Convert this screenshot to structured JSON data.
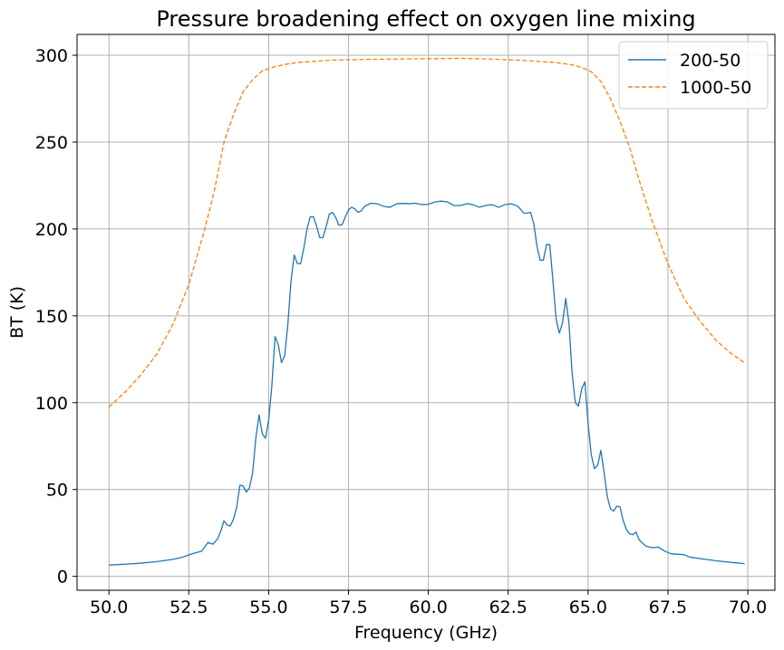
{
  "chart_data": {
    "type": "line",
    "title": "Pressure broadening effect on oxygen line mixing",
    "xlabel": "Frequency (GHz)",
    "ylabel": "BT (K)",
    "xlim": [
      49.0,
      70.85
    ],
    "ylim": [
      -8,
      312
    ],
    "xticks": [
      50.0,
      52.5,
      55.0,
      57.5,
      60.0,
      62.5,
      65.0,
      67.5,
      70.0
    ],
    "xtick_labels": [
      "50.0",
      "52.5",
      "55.0",
      "57.5",
      "60.0",
      "62.5",
      "65.0",
      "67.5",
      "70.0"
    ],
    "yticks": [
      0,
      50,
      100,
      150,
      200,
      250,
      300
    ],
    "ytick_labels": [
      "0",
      "50",
      "100",
      "150",
      "200",
      "250",
      "300"
    ],
    "grid": true,
    "legend_position": "top-right",
    "series": [
      {
        "name": "200-50",
        "color": "#1f77b4",
        "style": "solid",
        "points": [
          [
            50.0,
            6.5
          ],
          [
            50.5,
            7.0
          ],
          [
            51.0,
            7.6
          ],
          [
            51.5,
            8.5
          ],
          [
            52.0,
            9.8
          ],
          [
            52.3,
            11.0
          ],
          [
            52.6,
            13.0
          ],
          [
            52.9,
            14.5
          ],
          [
            53.0,
            17.0
          ],
          [
            53.1,
            19.5
          ],
          [
            53.25,
            18.5
          ],
          [
            53.4,
            21.5
          ],
          [
            53.5,
            26.0
          ],
          [
            53.6,
            32.0
          ],
          [
            53.7,
            29.5
          ],
          [
            53.8,
            29.0
          ],
          [
            53.9,
            33.0
          ],
          [
            54.0,
            40.0
          ],
          [
            54.1,
            52.5
          ],
          [
            54.2,
            52.0
          ],
          [
            54.3,
            48.5
          ],
          [
            54.4,
            51.0
          ],
          [
            54.5,
            60.0
          ],
          [
            54.6,
            80.0
          ],
          [
            54.7,
            93.0
          ],
          [
            54.8,
            82.0
          ],
          [
            54.9,
            79.5
          ],
          [
            55.0,
            90.0
          ],
          [
            55.1,
            110.0
          ],
          [
            55.2,
            138.0
          ],
          [
            55.3,
            133.5
          ],
          [
            55.4,
            123.0
          ],
          [
            55.5,
            127.0
          ],
          [
            55.6,
            145.0
          ],
          [
            55.7,
            170.0
          ],
          [
            55.8,
            185.0
          ],
          [
            55.9,
            180.0
          ],
          [
            56.0,
            180.0
          ],
          [
            56.1,
            189.0
          ],
          [
            56.2,
            200.0
          ],
          [
            56.3,
            207.0
          ],
          [
            56.4,
            207.0
          ],
          [
            56.5,
            201.5
          ],
          [
            56.6,
            195.0
          ],
          [
            56.7,
            195.0
          ],
          [
            56.8,
            201.5
          ],
          [
            56.9,
            208.5
          ],
          [
            57.0,
            209.5
          ],
          [
            57.1,
            206.5
          ],
          [
            57.2,
            202.0
          ],
          [
            57.3,
            202.5
          ],
          [
            57.4,
            207.0
          ],
          [
            57.5,
            211.0
          ],
          [
            57.6,
            212.5
          ],
          [
            57.7,
            211.5
          ],
          [
            57.8,
            209.5
          ],
          [
            57.9,
            210.5
          ],
          [
            58.0,
            213.0
          ],
          [
            58.2,
            214.8
          ],
          [
            58.4,
            214.5
          ],
          [
            58.6,
            213.0
          ],
          [
            58.8,
            212.5
          ],
          [
            59.0,
            214.5
          ],
          [
            59.2,
            214.7
          ],
          [
            59.4,
            214.5
          ],
          [
            59.6,
            214.8
          ],
          [
            59.8,
            214.0
          ],
          [
            60.0,
            214.2
          ],
          [
            60.2,
            215.5
          ],
          [
            60.4,
            216.0
          ],
          [
            60.6,
            215.5
          ],
          [
            60.8,
            213.5
          ],
          [
            61.0,
            213.5
          ],
          [
            61.2,
            214.5
          ],
          [
            61.4,
            214.0
          ],
          [
            61.6,
            212.5
          ],
          [
            61.8,
            213.5
          ],
          [
            62.0,
            214.0
          ],
          [
            62.2,
            212.5
          ],
          [
            62.4,
            214.0
          ],
          [
            62.6,
            214.5
          ],
          [
            62.8,
            213.0
          ],
          [
            63.0,
            209.0
          ],
          [
            63.2,
            209.5
          ],
          [
            63.3,
            203.0
          ],
          [
            63.4,
            190.0
          ],
          [
            63.5,
            182.0
          ],
          [
            63.6,
            182.0
          ],
          [
            63.7,
            191.0
          ],
          [
            63.8,
            191.0
          ],
          [
            63.9,
            170.0
          ],
          [
            64.0,
            148.0
          ],
          [
            64.1,
            140.0
          ],
          [
            64.2,
            146.0
          ],
          [
            64.3,
            160.0
          ],
          [
            64.4,
            146.0
          ],
          [
            64.5,
            117.0
          ],
          [
            64.6,
            100.0
          ],
          [
            64.7,
            98.0
          ],
          [
            64.8,
            108.0
          ],
          [
            64.9,
            112.0
          ],
          [
            65.0,
            88.0
          ],
          [
            65.1,
            70.0
          ],
          [
            65.2,
            62.0
          ],
          [
            65.3,
            64.0
          ],
          [
            65.4,
            72.5
          ],
          [
            65.5,
            60.0
          ],
          [
            65.6,
            46.0
          ],
          [
            65.7,
            39.0
          ],
          [
            65.8,
            37.5
          ],
          [
            65.9,
            40.5
          ],
          [
            66.0,
            40.0
          ],
          [
            66.1,
            32.0
          ],
          [
            66.2,
            27.0
          ],
          [
            66.3,
            24.5
          ],
          [
            66.4,
            24.0
          ],
          [
            66.5,
            25.5
          ],
          [
            66.6,
            21.0
          ],
          [
            66.8,
            17.5
          ],
          [
            67.0,
            16.5
          ],
          [
            67.2,
            16.8
          ],
          [
            67.4,
            14.5
          ],
          [
            67.6,
            13.0
          ],
          [
            68.0,
            12.5
          ],
          [
            68.2,
            11.0
          ],
          [
            68.6,
            10.0
          ],
          [
            69.0,
            9.0
          ],
          [
            69.5,
            8.0
          ],
          [
            69.9,
            7.3
          ]
        ]
      },
      {
        "name": "1000-50",
        "color": "#ff7f0e",
        "style": "dashed",
        "points": [
          [
            50.0,
            97.5
          ],
          [
            50.5,
            106.0
          ],
          [
            51.0,
            116.0
          ],
          [
            51.5,
            128.0
          ],
          [
            52.0,
            145.0
          ],
          [
            52.5,
            168.0
          ],
          [
            53.0,
            200.0
          ],
          [
            53.3,
            222.0
          ],
          [
            53.6,
            250.0
          ],
          [
            53.9,
            266.0
          ],
          [
            54.2,
            279.0
          ],
          [
            54.5,
            286.0
          ],
          [
            54.8,
            291.0
          ],
          [
            55.2,
            293.5
          ],
          [
            55.6,
            295.0
          ],
          [
            56.0,
            296.0
          ],
          [
            57.0,
            297.2
          ],
          [
            58.0,
            297.6
          ],
          [
            59.0,
            297.8
          ],
          [
            60.0,
            298.0
          ],
          [
            61.0,
            298.2
          ],
          [
            62.0,
            297.8
          ],
          [
            63.0,
            297.0
          ],
          [
            64.0,
            295.8
          ],
          [
            64.5,
            294.5
          ],
          [
            64.8,
            293.0
          ],
          [
            65.1,
            290.5
          ],
          [
            65.4,
            285.0
          ],
          [
            65.7,
            275.0
          ],
          [
            66.0,
            262.0
          ],
          [
            66.3,
            247.0
          ],
          [
            66.6,
            228.0
          ],
          [
            67.0,
            205.0
          ],
          [
            67.5,
            180.0
          ],
          [
            68.0,
            160.0
          ],
          [
            68.5,
            147.0
          ],
          [
            69.0,
            136.0
          ],
          [
            69.5,
            128.0
          ],
          [
            69.9,
            123.0
          ]
        ]
      }
    ]
  }
}
